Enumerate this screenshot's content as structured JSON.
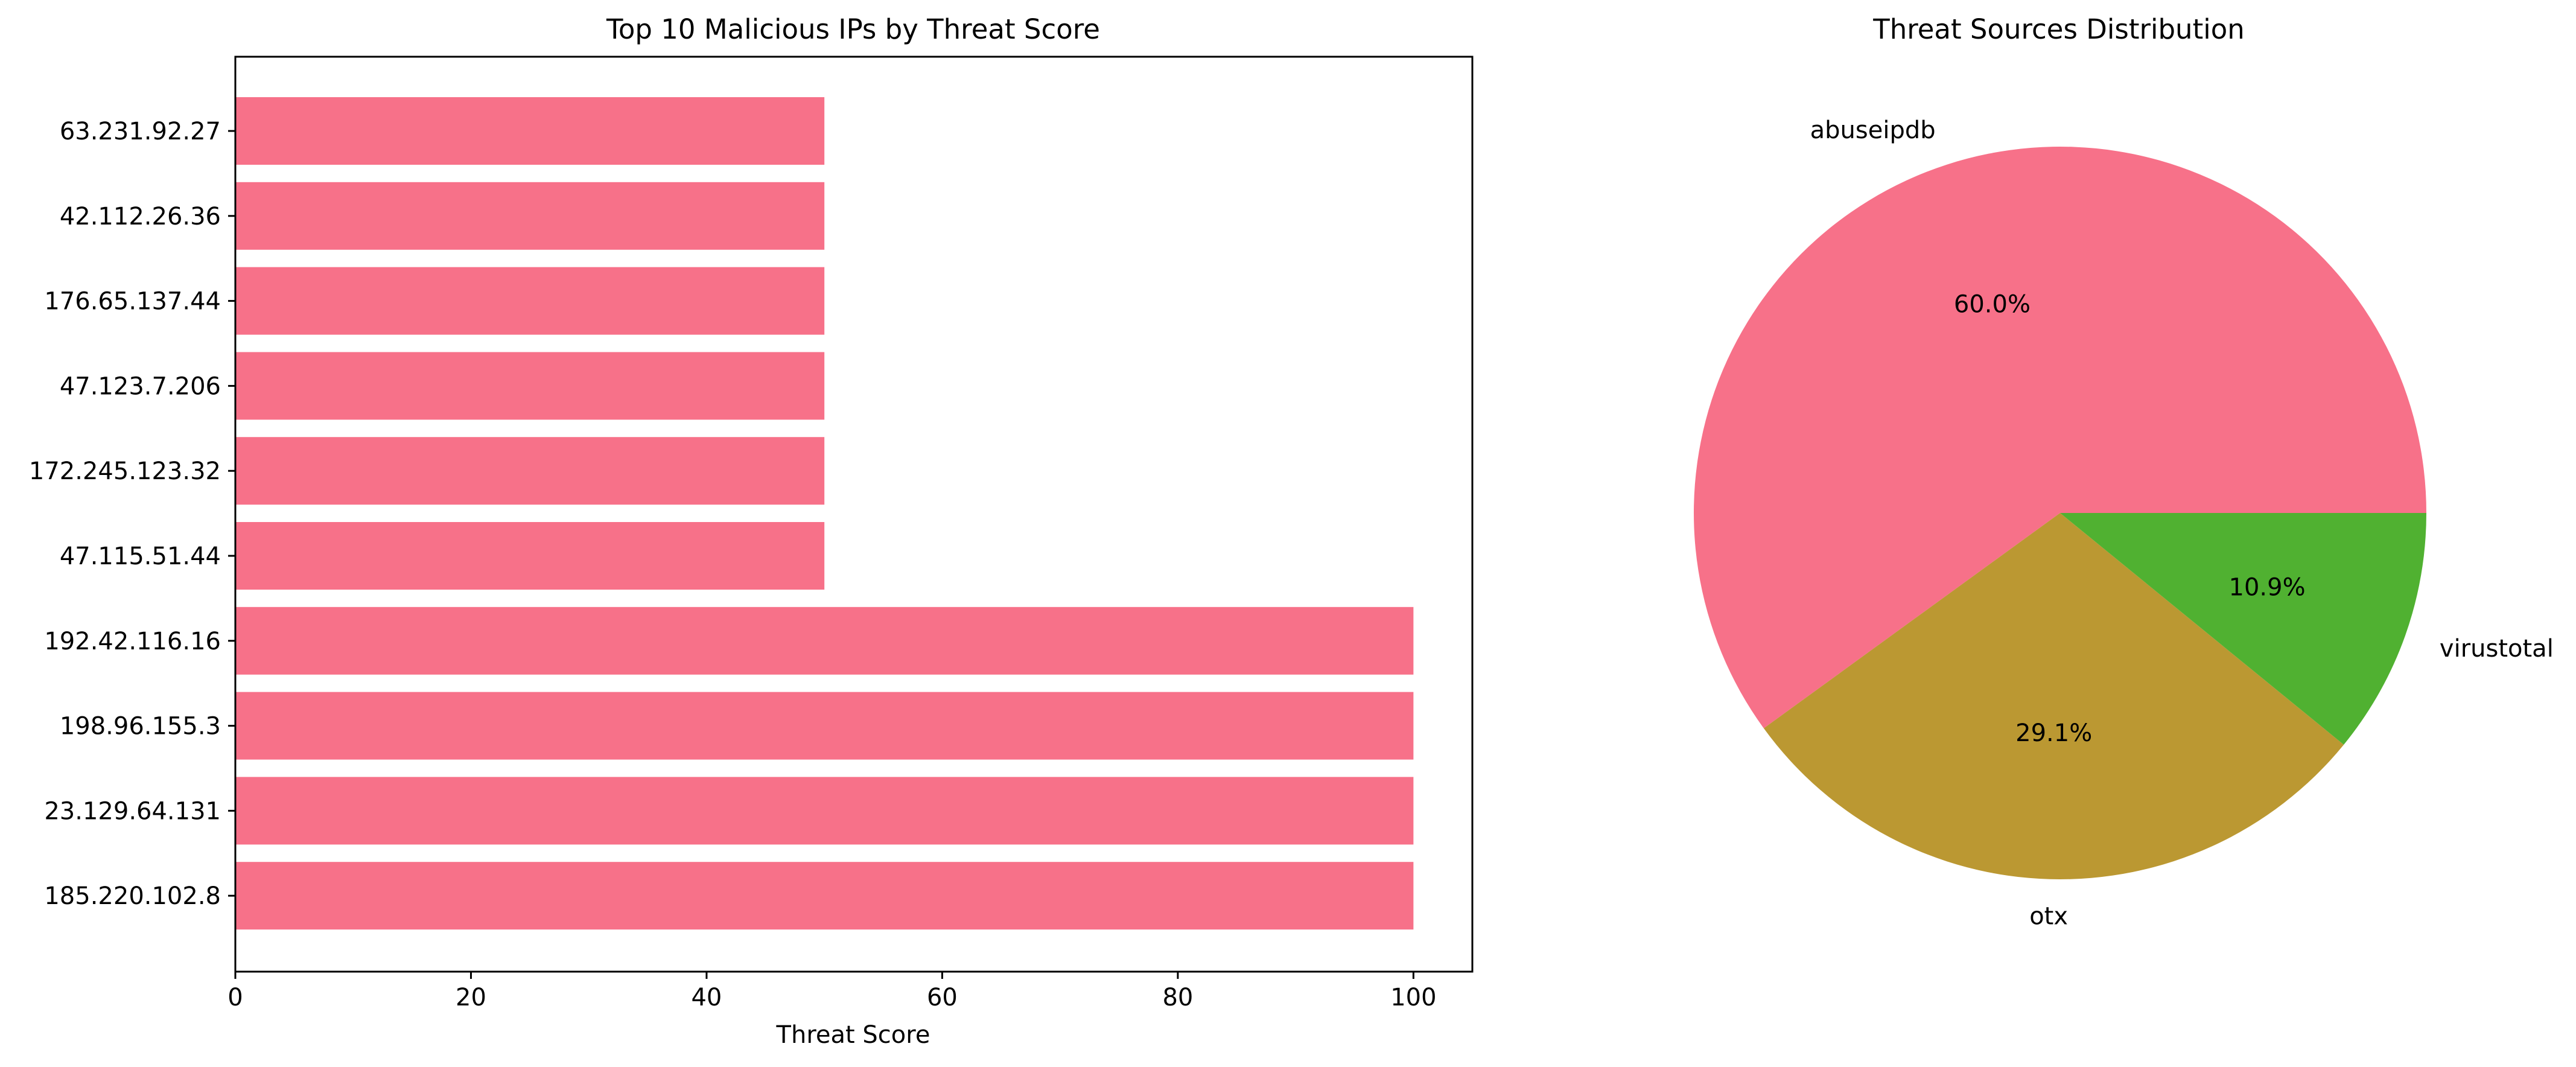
{
  "chart_data": [
    {
      "type": "bar",
      "orientation": "horizontal",
      "title": "Top 10 Malicious IPs by Threat Score",
      "xlabel": "Threat Score",
      "ylabel": "",
      "categories": [
        "63.231.92.27",
        "42.112.26.36",
        "176.65.137.44",
        "47.123.7.206",
        "172.245.123.32",
        "47.115.51.44",
        "192.42.116.16",
        "198.96.155.3",
        "23.129.64.131",
        "185.220.102.8"
      ],
      "values": [
        50,
        50,
        50,
        50,
        50,
        50,
        100,
        100,
        100,
        100
      ],
      "xlim": [
        0,
        105
      ],
      "xticks": [
        0,
        20,
        40,
        60,
        80,
        100
      ],
      "bar_color": "#f77189",
      "grid": false
    },
    {
      "type": "pie",
      "title": "Threat Sources Distribution",
      "labels": [
        "abuseipdb",
        "otx",
        "virustotal"
      ],
      "values": [
        60.0,
        29.1,
        10.9
      ],
      "value_labels": [
        "60.0%",
        "29.1%",
        "10.9%"
      ],
      "colors": [
        "#f77189",
        "#bb9832",
        "#50b131"
      ]
    }
  ]
}
